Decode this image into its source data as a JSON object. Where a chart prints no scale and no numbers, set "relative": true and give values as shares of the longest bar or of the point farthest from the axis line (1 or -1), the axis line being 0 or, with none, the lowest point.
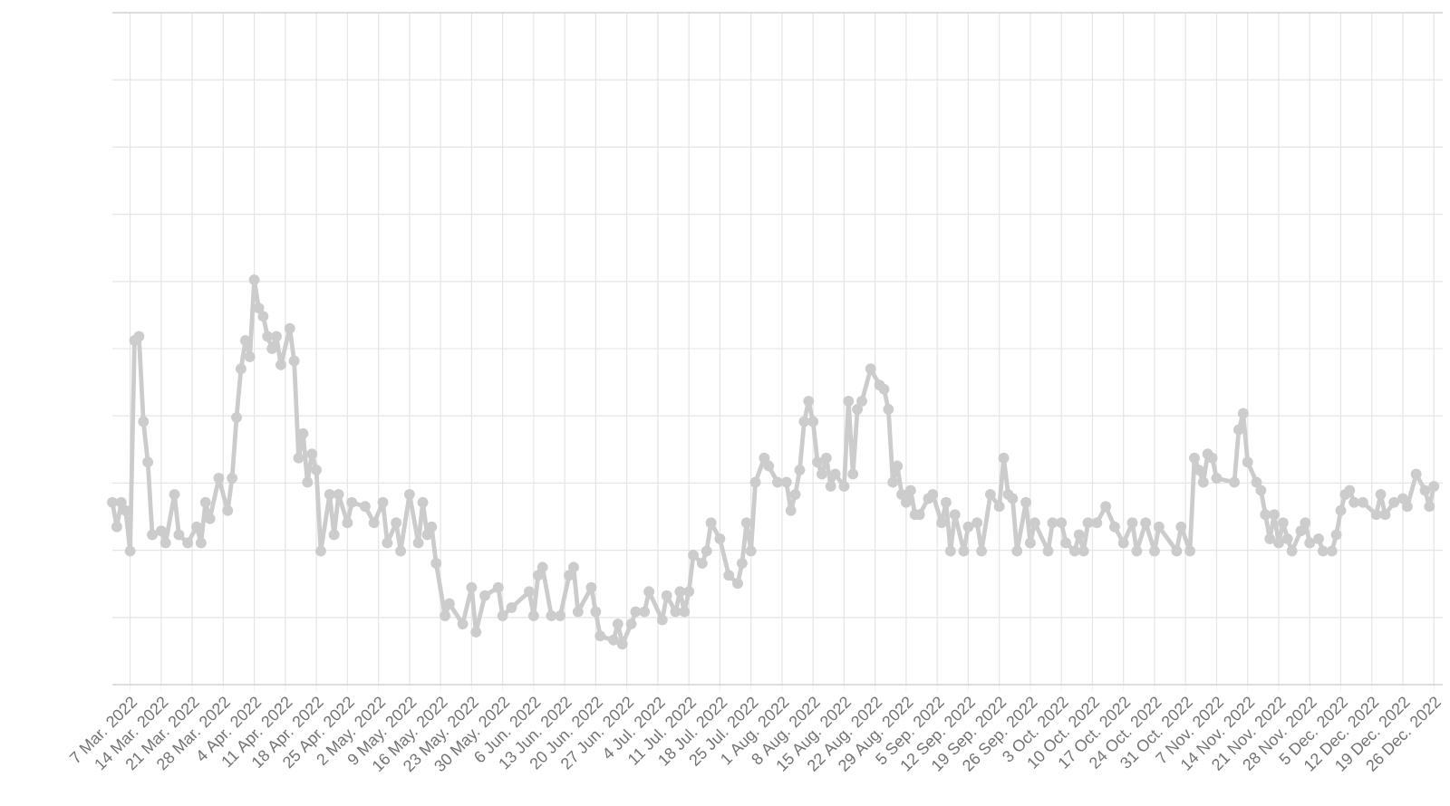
{
  "chart_data": {
    "type": "line",
    "relative": true,
    "color": "#cccccc",
    "marker": "circle",
    "grid": true,
    "xlim": [
      "2022-03-03",
      "2022-12-28"
    ],
    "xticks": [
      {
        "value": "2022-03-07",
        "label": "7 Mar. 2022"
      },
      {
        "value": "2022-03-14",
        "label": "14 Mar. 2022"
      },
      {
        "value": "2022-03-21",
        "label": "21 Mar. 2022"
      },
      {
        "value": "2022-03-28",
        "label": "28 Mar. 2022"
      },
      {
        "value": "2022-04-04",
        "label": "4 Apr. 2022"
      },
      {
        "value": "2022-04-11",
        "label": "11 Apr. 2022"
      },
      {
        "value": "2022-04-18",
        "label": "18 Apr. 2022"
      },
      {
        "value": "2022-04-25",
        "label": "25 Apr. 2022"
      },
      {
        "value": "2022-05-02",
        "label": "2 May. 2022"
      },
      {
        "value": "2022-05-09",
        "label": "9 May. 2022"
      },
      {
        "value": "2022-05-16",
        "label": "16 May. 2022"
      },
      {
        "value": "2022-05-23",
        "label": "23 May. 2022"
      },
      {
        "value": "2022-05-30",
        "label": "30 May. 2022"
      },
      {
        "value": "2022-06-06",
        "label": "6 Jun. 2022"
      },
      {
        "value": "2022-06-13",
        "label": "13 Jun. 2022"
      },
      {
        "value": "2022-06-20",
        "label": "20 Jun. 2022"
      },
      {
        "value": "2022-06-27",
        "label": "27 Jun. 2022"
      },
      {
        "value": "2022-07-04",
        "label": "4 Jul. 2022"
      },
      {
        "value": "2022-07-11",
        "label": "11 Jul. 2022"
      },
      {
        "value": "2022-07-18",
        "label": "18 Jul. 2022"
      },
      {
        "value": "2022-07-25",
        "label": "25 Jul. 2022"
      },
      {
        "value": "2022-08-01",
        "label": "1 Aug. 2022"
      },
      {
        "value": "2022-08-08",
        "label": "8 Aug. 2022"
      },
      {
        "value": "2022-08-15",
        "label": "15 Aug. 2022"
      },
      {
        "value": "2022-08-22",
        "label": "22 Aug. 2022"
      },
      {
        "value": "2022-08-29",
        "label": "29 Aug. 2022"
      },
      {
        "value": "2022-09-05",
        "label": "5 Sep. 2022"
      },
      {
        "value": "2022-09-12",
        "label": "12 Sep. 2022"
      },
      {
        "value": "2022-09-19",
        "label": "19 Sep. 2022"
      },
      {
        "value": "2022-09-26",
        "label": "26 Sep. 2022"
      },
      {
        "value": "2022-10-03",
        "label": "3 Oct. 2022"
      },
      {
        "value": "2022-10-10",
        "label": "10 Oct. 2022"
      },
      {
        "value": "2022-10-17",
        "label": "17 Oct. 2022"
      },
      {
        "value": "2022-10-24",
        "label": "24 Oct. 2022"
      },
      {
        "value": "2022-10-31",
        "label": "31 Oct. 2022"
      },
      {
        "value": "2022-11-07",
        "label": "7 Nov. 2022"
      },
      {
        "value": "2022-11-14",
        "label": "14 Nov. 2022"
      },
      {
        "value": "2022-11-21",
        "label": "21 Nov. 2022"
      },
      {
        "value": "2022-11-28",
        "label": "28 Nov. 2022"
      },
      {
        "value": "2022-12-05",
        "label": "5 Dec. 2022"
      },
      {
        "value": "2022-12-12",
        "label": "12 Dec. 2022"
      },
      {
        "value": "2022-12-19",
        "label": "19 Dec. 2022"
      },
      {
        "value": "2022-12-26",
        "label": "26 Dec. 2022"
      }
    ],
    "x": [
      "2022-03-03",
      "2022-03-04",
      "2022-03-05",
      "2022-03-06",
      "2022-03-07",
      "2022-03-08",
      "2022-03-09",
      "2022-03-10",
      "2022-03-11",
      "2022-03-12",
      "2022-03-14",
      "2022-03-15",
      "2022-03-17",
      "2022-03-18",
      "2022-03-20",
      "2022-03-22",
      "2022-03-23",
      "2022-03-24",
      "2022-03-25",
      "2022-03-27",
      "2022-03-29",
      "2022-03-30",
      "2022-03-31",
      "2022-04-01",
      "2022-04-02",
      "2022-04-03",
      "2022-04-04",
      "2022-04-05",
      "2022-04-06",
      "2022-04-07",
      "2022-04-08",
      "2022-04-09",
      "2022-04-10",
      "2022-04-12",
      "2022-04-13",
      "2022-04-14",
      "2022-04-15",
      "2022-04-16",
      "2022-04-17",
      "2022-04-18",
      "2022-04-19",
      "2022-04-21",
      "2022-04-22",
      "2022-04-23",
      "2022-04-25",
      "2022-04-26",
      "2022-04-29",
      "2022-05-01",
      "2022-05-03",
      "2022-05-04",
      "2022-05-06",
      "2022-05-07",
      "2022-05-09",
      "2022-05-11",
      "2022-05-12",
      "2022-05-13",
      "2022-05-14",
      "2022-05-15",
      "2022-05-17",
      "2022-05-18",
      "2022-05-21",
      "2022-05-23",
      "2022-05-24",
      "2022-05-26",
      "2022-05-29",
      "2022-05-30",
      "2022-06-01",
      "2022-06-05",
      "2022-06-06",
      "2022-06-07",
      "2022-06-08",
      "2022-06-10",
      "2022-06-12",
      "2022-06-14",
      "2022-06-15",
      "2022-06-16",
      "2022-06-19",
      "2022-06-20",
      "2022-06-21",
      "2022-06-24",
      "2022-06-25",
      "2022-06-26",
      "2022-06-28",
      "2022-06-29",
      "2022-07-01",
      "2022-07-02",
      "2022-07-05",
      "2022-07-06",
      "2022-07-08",
      "2022-07-09",
      "2022-07-10",
      "2022-07-11",
      "2022-07-12",
      "2022-07-14",
      "2022-07-15",
      "2022-07-16",
      "2022-07-18",
      "2022-07-20",
      "2022-07-22",
      "2022-07-23",
      "2022-07-24",
      "2022-07-25",
      "2022-07-26",
      "2022-07-28",
      "2022-07-29",
      "2022-07-31",
      "2022-08-02",
      "2022-08-03",
      "2022-08-04",
      "2022-08-05",
      "2022-08-06",
      "2022-08-07",
      "2022-08-08",
      "2022-08-09",
      "2022-08-10",
      "2022-08-11",
      "2022-08-12",
      "2022-08-13",
      "2022-08-15",
      "2022-08-16",
      "2022-08-17",
      "2022-08-18",
      "2022-08-19",
      "2022-08-21",
      "2022-08-23",
      "2022-08-24",
      "2022-08-25",
      "2022-08-26",
      "2022-08-27",
      "2022-08-28",
      "2022-08-29",
      "2022-08-30",
      "2022-08-31",
      "2022-09-01",
      "2022-09-03",
      "2022-09-04",
      "2022-09-06",
      "2022-09-07",
      "2022-09-08",
      "2022-09-09",
      "2022-09-11",
      "2022-09-12",
      "2022-09-14",
      "2022-09-15",
      "2022-09-17",
      "2022-09-19",
      "2022-09-20",
      "2022-09-21",
      "2022-09-22",
      "2022-09-23",
      "2022-09-25",
      "2022-09-26",
      "2022-09-27",
      "2022-09-30",
      "2022-10-01",
      "2022-10-03",
      "2022-10-04",
      "2022-10-06",
      "2022-10-07",
      "2022-10-08",
      "2022-10-09",
      "2022-10-11",
      "2022-10-13",
      "2022-10-15",
      "2022-10-17",
      "2022-10-19",
      "2022-10-20",
      "2022-10-22",
      "2022-10-24",
      "2022-10-25",
      "2022-10-29",
      "2022-10-30",
      "2022-11-01",
      "2022-11-02",
      "2022-11-03",
      "2022-11-04",
      "2022-11-05",
      "2022-11-06",
      "2022-11-07",
      "2022-11-11",
      "2022-11-12",
      "2022-11-13",
      "2022-11-14",
      "2022-11-16",
      "2022-11-17",
      "2022-11-18",
      "2022-11-19",
      "2022-11-20",
      "2022-11-21",
      "2022-11-22",
      "2022-11-23",
      "2022-11-24",
      "2022-11-26",
      "2022-11-27",
      "2022-11-28",
      "2022-11-30",
      "2022-12-01",
      "2022-12-03",
      "2022-12-04",
      "2022-12-05",
      "2022-12-06",
      "2022-12-07",
      "2022-12-08",
      "2022-12-10",
      "2022-12-13",
      "2022-12-14",
      "2022-12-15",
      "2022-12-17",
      "2022-12-19",
      "2022-12-20",
      "2022-12-22",
      "2022-12-24",
      "2022-12-25",
      "2022-12-26"
    ],
    "values": [
      0.45,
      0.39,
      0.45,
      0.43,
      0.33,
      0.85,
      0.86,
      0.65,
      0.55,
      0.37,
      0.38,
      0.35,
      0.47,
      0.37,
      0.35,
      0.39,
      0.35,
      0.45,
      0.41,
      0.51,
      0.43,
      0.51,
      0.66,
      0.78,
      0.85,
      0.81,
      1,
      0.93,
      0.91,
      0.86,
      0.83,
      0.86,
      0.79,
      0.88,
      0.8,
      0.56,
      0.62,
      0.5,
      0.57,
      0.53,
      0.33,
      0.47,
      0.37,
      0.47,
      0.4,
      0.45,
      0.44,
      0.4,
      0.45,
      0.35,
      0.4,
      0.33,
      0.47,
      0.35,
      0.45,
      0.37,
      0.39,
      0.3,
      0.17,
      0.2,
      0.15,
      0.24,
      0.13,
      0.22,
      0.24,
      0.17,
      0.19,
      0.23,
      0.17,
      0.27,
      0.29,
      0.17,
      0.17,
      0.27,
      0.29,
      0.18,
      0.24,
      0.18,
      0.12,
      0.11,
      0.15,
      0.1,
      0.15,
      0.18,
      0.18,
      0.23,
      0.16,
      0.22,
      0.18,
      0.23,
      0.18,
      0.23,
      0.32,
      0.3,
      0.33,
      0.4,
      0.36,
      0.27,
      0.25,
      0.3,
      0.4,
      0.33,
      0.5,
      0.56,
      0.54,
      0.5,
      0.5,
      0.43,
      0.47,
      0.53,
      0.65,
      0.7,
      0.65,
      0.55,
      0.52,
      0.56,
      0.49,
      0.52,
      0.49,
      0.7,
      0.52,
      0.68,
      0.7,
      0.78,
      0.74,
      0.73,
      0.68,
      0.5,
      0.54,
      0.47,
      0.45,
      0.48,
      0.42,
      0.42,
      0.46,
      0.47,
      0.4,
      0.45,
      0.33,
      0.42,
      0.33,
      0.39,
      0.4,
      0.33,
      0.47,
      0.44,
      0.56,
      0.47,
      0.46,
      0.33,
      0.45,
      0.35,
      0.4,
      0.33,
      0.4,
      0.4,
      0.35,
      0.33,
      0.37,
      0.33,
      0.4,
      0.4,
      0.44,
      0.39,
      0.35,
      0.4,
      0.33,
      0.4,
      0.33,
      0.39,
      0.33,
      0.39,
      0.33,
      0.56,
      0.53,
      0.5,
      0.57,
      0.56,
      0.51,
      0.5,
      0.63,
      0.67,
      0.55,
      0.5,
      0.48,
      0.42,
      0.36,
      0.42,
      0.35,
      0.4,
      0.36,
      0.33,
      0.38,
      0.4,
      0.35,
      0.36,
      0.33,
      0.33,
      0.37,
      0.43,
      0.47,
      0.48,
      0.45,
      0.45,
      0.42,
      0.47,
      0.42,
      0.45,
      0.46,
      0.44,
      0.52,
      0.48,
      0.44,
      0.49
    ]
  }
}
